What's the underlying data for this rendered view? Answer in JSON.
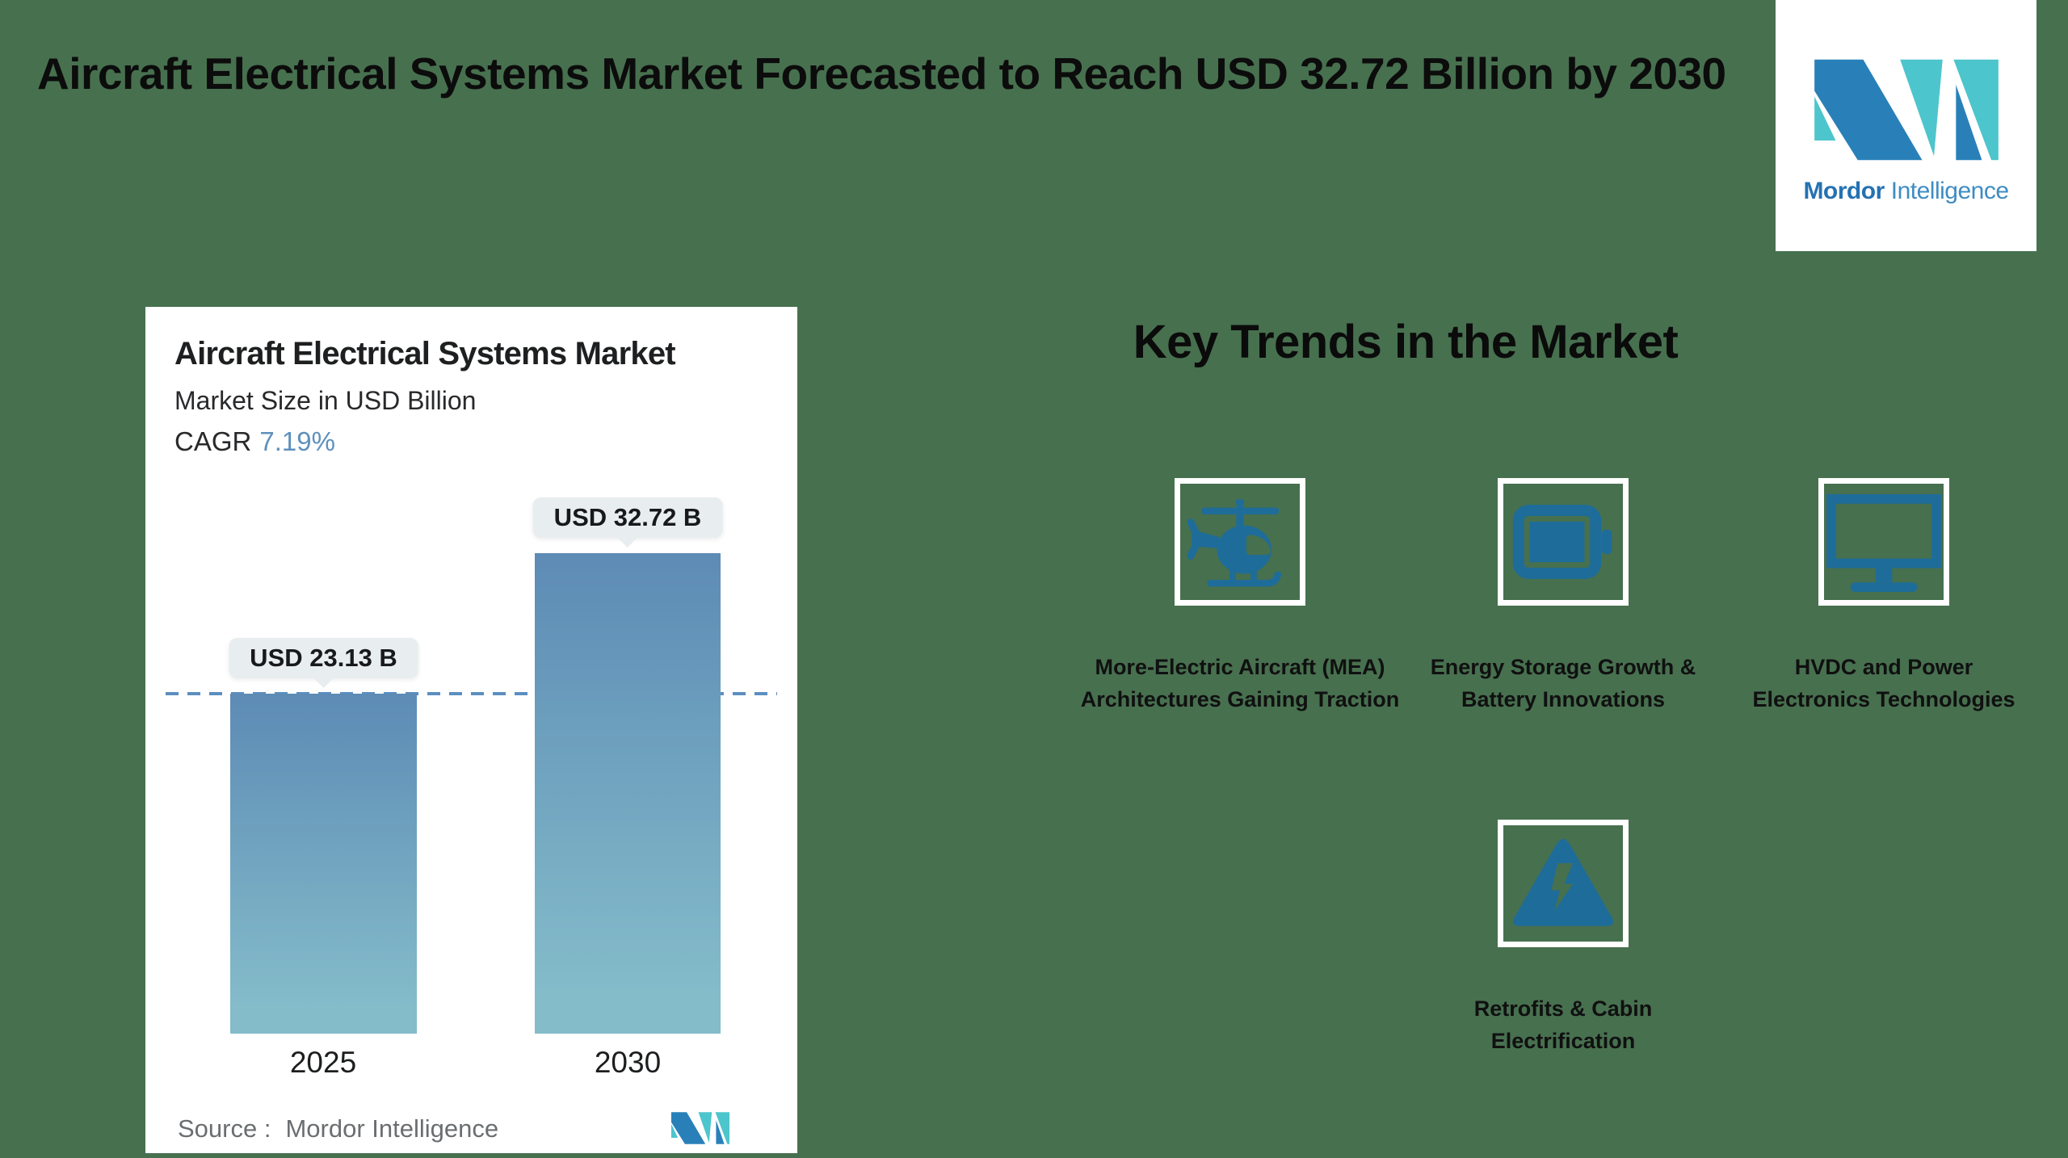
{
  "page": {
    "bg_color": "#47704F"
  },
  "header": {
    "title": "Aircraft Electrical Systems Market Forecasted to Reach USD 32.72 Billion by 2030"
  },
  "brand": {
    "word_bold": "Mordor",
    "word_regular": "Intelligence",
    "mark_blue": "#2980B9",
    "mark_teal": "#4DC5CC"
  },
  "chart_data": {
    "type": "bar",
    "title": "Aircraft Electrical Systems Market",
    "subtitle": "Market Size in USD Billion",
    "cagr_label": "CAGR",
    "cagr_value": "7.19%",
    "categories": [
      "2025",
      "2030"
    ],
    "values": [
      23.13,
      32.72
    ],
    "value_labels": [
      "USD 23.13 B",
      "USD 32.72 B"
    ],
    "ylabel": "Market Size in USD Billion",
    "ylim": [
      0,
      32.72
    ],
    "grid": "off",
    "legend": "none",
    "reference_line_value": 23.13,
    "reference_line_style": "dashed",
    "reference_line_color": "#5B8FC0",
    "bar_color_top": "#5D8BB5",
    "bar_color_bottom": "#84BCCA",
    "source_label": "Source :",
    "source_value": "Mordor Intelligence"
  },
  "key_trends": {
    "heading": "Key Trends in the Market",
    "icon_color": "#1E6C99",
    "items": [
      {
        "icon": "helicopter-icon",
        "label": "More-Electric Aircraft (MEA) Architectures Gaining Traction"
      },
      {
        "icon": "battery-icon",
        "label": "Energy Storage Growth & Battery Innovations"
      },
      {
        "icon": "monitor-icon",
        "label": "HVDC and Power Electronics Technologies"
      },
      {
        "icon": "high-voltage-icon",
        "label": "Retrofits & Cabin Electrification"
      }
    ]
  }
}
